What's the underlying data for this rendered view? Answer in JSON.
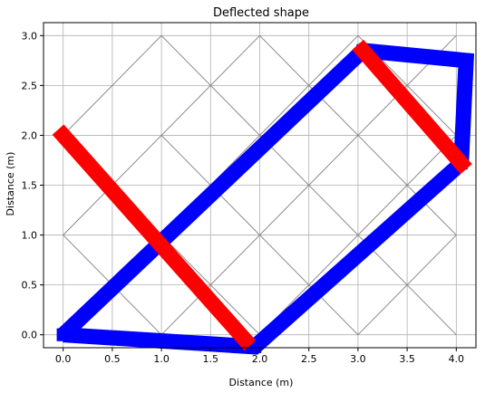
{
  "chart_data": {
    "type": "line",
    "title": "Deflected shape",
    "xlabel": "Distance (m)",
    "ylabel": "Distance (m)",
    "xlim": [
      -0.2,
      4.2
    ],
    "ylim": [
      -0.13,
      3.13
    ],
    "grid": true,
    "xticks": [
      "0.0",
      "0.5",
      "1.0",
      "1.5",
      "2.0",
      "2.5",
      "3.0",
      "3.5",
      "4.0"
    ],
    "yticks": [
      "0.0",
      "0.5",
      "1.0",
      "1.5",
      "2.0",
      "2.5",
      "3.0"
    ],
    "xtick_values": [
      0,
      0.5,
      1,
      1.5,
      2,
      2.5,
      3,
      3.5,
      4
    ],
    "ytick_values": [
      0,
      0.5,
      1,
      1.5,
      2,
      2.5,
      3
    ],
    "undeflected_mesh": {
      "color": "#888888",
      "segments": [
        [
          [
            0,
            0
          ],
          [
            1,
            1
          ]
        ],
        [
          [
            1,
            1
          ],
          [
            2,
            0
          ]
        ],
        [
          [
            1,
            0
          ],
          [
            2,
            1
          ]
        ],
        [
          [
            2,
            1
          ],
          [
            3,
            0
          ]
        ],
        [
          [
            2,
            0
          ],
          [
            3,
            1
          ]
        ],
        [
          [
            3,
            1
          ],
          [
            4,
            0
          ]
        ],
        [
          [
            0,
            2
          ],
          [
            1,
            1
          ]
        ],
        [
          [
            1,
            1
          ],
          [
            2,
            2
          ]
        ],
        [
          [
            1,
            2
          ],
          [
            2,
            1
          ]
        ],
        [
          [
            2,
            1
          ],
          [
            3,
            2
          ]
        ],
        [
          [
            2,
            2
          ],
          [
            3,
            1
          ]
        ],
        [
          [
            3,
            1
          ],
          [
            4,
            2
          ]
        ],
        [
          [
            0,
            2
          ],
          [
            1,
            3
          ]
        ],
        [
          [
            1,
            3
          ],
          [
            2,
            2
          ]
        ],
        [
          [
            1,
            2
          ],
          [
            2,
            3
          ]
        ],
        [
          [
            2,
            3
          ],
          [
            3,
            2
          ]
        ],
        [
          [
            2,
            2
          ],
          [
            3,
            3
          ]
        ],
        [
          [
            3,
            3
          ],
          [
            4,
            2
          ]
        ],
        [
          [
            0,
            1
          ],
          [
            1,
            0
          ]
        ],
        [
          [
            0,
            1
          ],
          [
            1,
            2
          ]
        ],
        [
          [
            3,
            0
          ],
          [
            4,
            1
          ]
        ],
        [
          [
            3,
            2
          ],
          [
            4,
            1
          ]
        ],
        [
          [
            3,
            2
          ],
          [
            4,
            3
          ]
        ]
      ]
    },
    "series": [
      {
        "color": "#0000ff",
        "points": [
          [
            0.0,
            0.0
          ],
          [
            3.05,
            2.85
          ],
          [
            4.1,
            2.75
          ],
          [
            4.05,
            1.72
          ],
          [
            1.95,
            -0.12
          ],
          [
            0.0,
            0.0
          ]
        ]
      },
      {
        "color": "#ff0000",
        "segments": [
          [
            [
              0.0,
              2.0
            ],
            [
              1.85,
              -0.05
            ]
          ],
          [
            [
              3.05,
              2.85
            ],
            [
              4.05,
              1.72
            ]
          ]
        ]
      }
    ]
  }
}
